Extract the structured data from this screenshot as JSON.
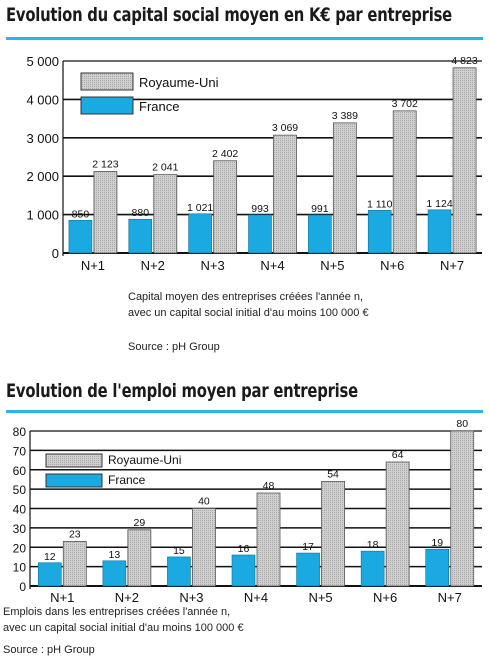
{
  "colors": {
    "accent": "#2ab5e8",
    "france": "#1aa9e0",
    "royaume_uni": "#d0d0d0",
    "grid": "#111111"
  },
  "chart1": {
    "title": "Evolution du capital social moyen en K€ par entreprise",
    "note_lines": [
      "Capital moyen des entreprises créées l'année n,",
      "avec un capital social initial d'au moins 100 000 €"
    ],
    "source": "Source : pH Group"
  },
  "chart2": {
    "title": "Evolution de l'emploi moyen par entreprise",
    "note_lines": [
      "Emplois dans les entreprises créées l'année n,",
      "avec un capital social initial d'au moins 100 000 €"
    ],
    "source": "Source : pH Group"
  },
  "chart_data": [
    {
      "type": "bar",
      "title": "Evolution du capital social moyen en K€ par entreprise",
      "xlabel": "",
      "ylabel": "",
      "categories": [
        "N+1",
        "N+2",
        "N+3",
        "N+4",
        "N+5",
        "N+6",
        "N+7"
      ],
      "series": [
        {
          "name": "France",
          "values": [
            850,
            880,
            1021,
            993,
            991,
            1110,
            1124
          ],
          "labels": [
            "850",
            "880",
            "1 021",
            "993",
            "991",
            "1 110",
            "1 124"
          ]
        },
        {
          "name": "Royaume-Uni",
          "values": [
            2123,
            2041,
            2402,
            3069,
            3389,
            3702,
            4823
          ],
          "labels": [
            "2 123",
            "2 041",
            "2 402",
            "3 069",
            "3 389",
            "3 702",
            "4 823"
          ]
        }
      ],
      "ylim": [
        0,
        5000
      ],
      "yticks": [
        0,
        1000,
        2000,
        3000,
        4000,
        5000
      ],
      "ytick_labels": [
        "0",
        "1 000",
        "2 000",
        "3 000",
        "4 000",
        "5 000"
      ],
      "grid": true,
      "legend": "top-left"
    },
    {
      "type": "bar",
      "title": "Evolution de l'emploi moyen par entreprise",
      "xlabel": "",
      "ylabel": "",
      "categories": [
        "N+1",
        "N+2",
        "N+3",
        "N+4",
        "N+5",
        "N+6",
        "N+7"
      ],
      "series": [
        {
          "name": "France",
          "values": [
            12,
            13,
            15,
            16,
            17,
            18,
            19
          ],
          "labels": [
            "12",
            "13",
            "15",
            "16",
            "17",
            "18",
            "19"
          ]
        },
        {
          "name": "Royaume-Uni",
          "values": [
            23,
            29,
            40,
            48,
            54,
            64,
            80
          ],
          "labels": [
            "23",
            "29",
            "40",
            "48",
            "54",
            "64",
            "80"
          ]
        }
      ],
      "ylim": [
        0,
        80
      ],
      "yticks": [
        0,
        10,
        20,
        30,
        40,
        50,
        60,
        70,
        80
      ],
      "ytick_labels": [
        "0",
        "10",
        "20",
        "30",
        "40",
        "50",
        "60",
        "70",
        "80"
      ],
      "grid": true,
      "legend": "top-left"
    }
  ]
}
